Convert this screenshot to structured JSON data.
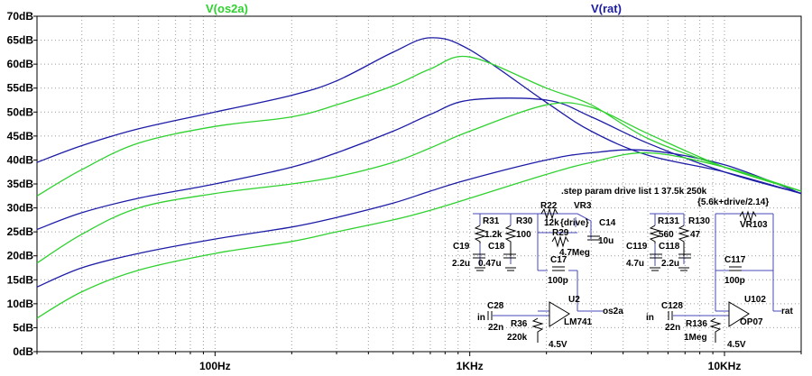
{
  "legend": {
    "green": {
      "label": "V(os2a)",
      "color": "#2fd12f"
    },
    "blue": {
      "label": "V(rat)",
      "color": "#1c1ca6"
    }
  },
  "chart_data": {
    "type": "line",
    "x_scale": "log",
    "xlim": [
      20,
      20000
    ],
    "ylim": [
      0,
      70
    ],
    "y_ticks": [
      "0dB",
      "5dB",
      "10dB",
      "15dB",
      "20dB",
      "25dB",
      "30dB",
      "35dB",
      "40dB",
      "45dB",
      "50dB",
      "55dB",
      "60dB",
      "65dB",
      "70dB"
    ],
    "x_ticks": [
      {
        "value": 100,
        "label": "100Hz"
      },
      {
        "value": 1000,
        "label": "1KHz"
      },
      {
        "value": 10000,
        "label": "10KHz"
      }
    ],
    "grid": "dotted",
    "series": [
      {
        "name": "V(rat)",
        "color": "#1c1ca6",
        "x": [
          20,
          30,
          50,
          100,
          200,
          300,
          500,
          700,
          1000,
          2000,
          3000,
          5000,
          10000,
          20000
        ],
        "y": [
          39.5,
          43,
          46.5,
          50,
          53.5,
          56.5,
          62.5,
          65.5,
          63,
          52,
          46,
          41,
          37.5,
          33
        ]
      },
      {
        "name": "V(rat)",
        "color": "#1c1ca6",
        "x": [
          20,
          30,
          50,
          100,
          200,
          300,
          500,
          700,
          1000,
          2000,
          3000,
          5000,
          10000,
          20000
        ],
        "y": [
          25.5,
          29,
          32,
          35,
          38.5,
          41.5,
          46,
          49.5,
          52.5,
          52.5,
          49,
          43.5,
          37.5,
          33
        ]
      },
      {
        "name": "V(rat)",
        "color": "#1c1ca6",
        "x": [
          20,
          30,
          50,
          100,
          200,
          300,
          500,
          700,
          1000,
          2000,
          3000,
          5000,
          10000,
          20000
        ],
        "y": [
          13.5,
          17.5,
          20.5,
          23.5,
          26,
          28,
          31,
          33.5,
          36,
          40,
          41.5,
          42,
          39,
          33
        ]
      },
      {
        "name": "V(os2a)",
        "color": "#2fd12f",
        "x": [
          20,
          30,
          50,
          100,
          200,
          300,
          500,
          700,
          1000,
          2000,
          3000,
          5000,
          10000,
          20000
        ],
        "y": [
          32.5,
          38,
          43.5,
          47,
          49,
          51.5,
          55.5,
          59,
          61.5,
          55,
          51.5,
          44.5,
          38.5,
          33.5
        ]
      },
      {
        "name": "V(os2a)",
        "color": "#2fd12f",
        "x": [
          20,
          30,
          50,
          100,
          200,
          300,
          500,
          700,
          1000,
          2000,
          3000,
          5000,
          10000,
          20000
        ],
        "y": [
          18.5,
          24.5,
          30,
          33,
          35,
          36.5,
          39.5,
          42.5,
          46,
          51.5,
          51,
          45.5,
          38.5,
          33.5
        ]
      },
      {
        "name": "V(os2a)",
        "color": "#2fd12f",
        "x": [
          20,
          30,
          50,
          100,
          200,
          300,
          500,
          700,
          1000,
          2000,
          3000,
          5000,
          10000,
          20000
        ],
        "y": [
          7,
          12.5,
          17,
          20.5,
          23,
          25,
          27.5,
          29.5,
          32,
          37,
          39.5,
          41.5,
          38.5,
          33.5
        ]
      }
    ]
  },
  "schematic": {
    "step_directive": ".step param drive  list 1 37.5k 250k",
    "expression": "{5.6k+drive/2.14}",
    "left": {
      "R31": "R31",
      "R31_val": "1.2k",
      "R30": "R30",
      "R30_val": "100",
      "R22": "R22",
      "R22_val": "12k",
      "VR3": "VR3",
      "VR3_val": "{drive}",
      "C14": "C14",
      "C14_val": "10u",
      "R29": "R29",
      "R29_val": "4.7Meg",
      "C19": "C19",
      "C19_val": "2.2u",
      "C18": "C18",
      "C18_val": "0.47u",
      "C17": "C17",
      "C17_val": "100p",
      "U2": "U2",
      "U2_model": "LM741",
      "C28": "C28",
      "C28_val": "22n",
      "R36": "R36",
      "R36_val": "220k",
      "in": "in",
      "out": "os2a",
      "bias": "4.5V"
    },
    "right": {
      "R131": "R131",
      "R131_val": "560",
      "R130": "R130",
      "R130_val": "47",
      "VR103": "VR103",
      "C119": "C119",
      "C119_val": "4.7u",
      "C118": "C118",
      "C118_val": "2.2u",
      "C117": "C117",
      "C117_val": "100p",
      "U102": "U102",
      "U102_model": "OP07",
      "C128": "C128",
      "C128_val": "22n",
      "R136": "R136",
      "R136_val": "1Meg",
      "in": "in",
      "out": "rat",
      "bias": "4.5V"
    }
  }
}
